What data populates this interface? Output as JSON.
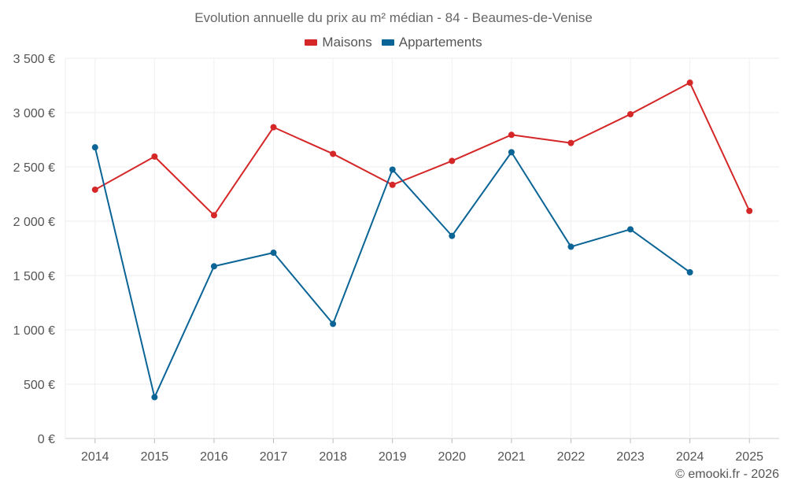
{
  "chart_data": {
    "type": "line",
    "title": "Evolution annuelle du prix au m² médian - 84 - Beaumes-de-Venise",
    "xlabel": "",
    "ylabel": "",
    "categories": [
      "2014",
      "2015",
      "2016",
      "2017",
      "2018",
      "2019",
      "2020",
      "2021",
      "2022",
      "2023",
      "2024",
      "2025"
    ],
    "ylim": [
      0,
      3500
    ],
    "yticks": [
      0,
      500,
      1000,
      1500,
      2000,
      2500,
      3000,
      3500
    ],
    "ytick_labels": [
      "0 €",
      "500 €",
      "1 000 €",
      "1 500 €",
      "2 000 €",
      "2 500 €",
      "3 000 €",
      "3 500 €"
    ],
    "grid": true,
    "legend_position": "top-center",
    "series": [
      {
        "name": "Maisons",
        "color": "#d62728",
        "values": [
          2290,
          2595,
          2055,
          2865,
          2620,
          2335,
          2555,
          2795,
          2720,
          2985,
          3275,
          2095
        ]
      },
      {
        "name": "Appartements",
        "color": "#0a6496",
        "values": [
          2680,
          380,
          1585,
          1710,
          1055,
          2475,
          1865,
          2635,
          1765,
          1925,
          1530,
          null
        ]
      }
    ]
  },
  "credit": "© emooki.fr - 2026"
}
